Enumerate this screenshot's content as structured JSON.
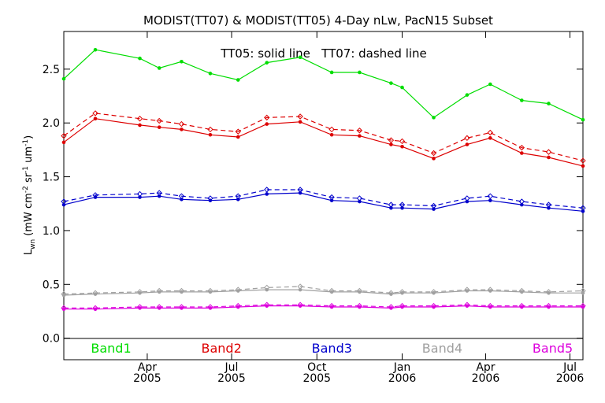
{
  "chart_data": {
    "type": "line",
    "title": "MODIST(TT07) & MODIST(TT05) 4-Day nLw, PacN15 Subset",
    "annotation": "TT05: solid line   TT07: dashed line",
    "ylabel": {
      "main": "L",
      "sub": "wn",
      "units_open": " (mW cm",
      "exp1": "-2",
      "mid": " sr",
      "exp2": "-1",
      "mid2": " um",
      "exp3": "-1",
      "close": ")"
    },
    "ylim": [
      -0.2,
      2.85
    ],
    "yticks": [
      0.0,
      0.5,
      1.0,
      1.5,
      2.0,
      2.5
    ],
    "ytick_labels": [
      "0.0",
      "0.5",
      "1.0",
      "1.5",
      "2.0",
      "2.5"
    ],
    "xlim": [
      "2005-01-01",
      "2006-07-15"
    ],
    "xticks": [
      {
        "date": "2005-04-01",
        "month": "Apr",
        "year": "2005"
      },
      {
        "date": "2005-07-01",
        "month": "Jul",
        "year": "2005"
      },
      {
        "date": "2005-10-01",
        "month": "Oct",
        "year": "2005"
      },
      {
        "date": "2006-01-01",
        "month": "Jan",
        "year": "2006"
      },
      {
        "date": "2006-04-01",
        "month": "Apr",
        "year": "2006"
      },
      {
        "date": "2006-07-01",
        "month": "Jul",
        "year": "2006"
      }
    ],
    "dates": [
      "2005-01-01",
      "2005-02-04",
      "2005-03-24",
      "2005-04-14",
      "2005-05-08",
      "2005-06-08",
      "2005-07-08",
      "2005-08-08",
      "2005-09-13",
      "2005-10-17",
      "2005-11-16",
      "2005-12-20",
      "2006-01-01",
      "2006-02-04",
      "2006-03-12",
      "2006-04-06",
      "2006-05-10",
      "2006-06-08",
      "2006-07-15"
    ],
    "series": [
      {
        "name": "Band1",
        "color": "#00dd00",
        "style": "solid",
        "values": [
          2.41,
          2.68,
          2.6,
          2.51,
          2.57,
          2.46,
          2.4,
          2.56,
          2.61,
          2.47,
          2.47,
          2.37,
          2.33,
          2.05,
          2.26,
          2.36,
          2.21,
          2.18,
          2.03
        ]
      },
      {
        "name": "Band2",
        "color": "#dd0000",
        "style": "solid",
        "values": [
          1.82,
          2.04,
          1.98,
          1.96,
          1.94,
          1.89,
          1.87,
          1.99,
          2.01,
          1.89,
          1.88,
          1.8,
          1.78,
          1.67,
          1.8,
          1.86,
          1.72,
          1.68,
          1.6
        ]
      },
      {
        "name": "Band2",
        "color": "#dd0000",
        "style": "dashed",
        "values": [
          1.88,
          2.09,
          2.04,
          2.02,
          1.99,
          1.94,
          1.92,
          2.05,
          2.06,
          1.94,
          1.93,
          1.84,
          1.83,
          1.72,
          1.86,
          1.91,
          1.77,
          1.73,
          1.65
        ]
      },
      {
        "name": "Band3",
        "color": "#0000cc",
        "style": "solid",
        "values": [
          1.24,
          1.31,
          1.31,
          1.32,
          1.29,
          1.28,
          1.29,
          1.34,
          1.35,
          1.28,
          1.27,
          1.21,
          1.21,
          1.2,
          1.27,
          1.28,
          1.24,
          1.21,
          1.18
        ]
      },
      {
        "name": "Band3",
        "color": "#0000cc",
        "style": "dashed",
        "values": [
          1.27,
          1.33,
          1.34,
          1.35,
          1.32,
          1.3,
          1.32,
          1.38,
          1.38,
          1.31,
          1.3,
          1.24,
          1.24,
          1.23,
          1.3,
          1.32,
          1.27,
          1.24,
          1.21
        ]
      },
      {
        "name": "Band4",
        "color": "#a0a0a0",
        "style": "solid",
        "values": [
          0.4,
          0.41,
          0.42,
          0.43,
          0.43,
          0.43,
          0.44,
          0.45,
          0.45,
          0.43,
          0.43,
          0.41,
          0.42,
          0.42,
          0.44,
          0.44,
          0.43,
          0.42,
          0.42
        ]
      },
      {
        "name": "Band4",
        "color": "#a0a0a0",
        "style": "dashed",
        "values": [
          0.41,
          0.42,
          0.43,
          0.44,
          0.44,
          0.44,
          0.45,
          0.47,
          0.48,
          0.44,
          0.44,
          0.42,
          0.43,
          0.43,
          0.45,
          0.45,
          0.44,
          0.43,
          0.44
        ]
      },
      {
        "name": "Band5",
        "color": "#dd00dd",
        "style": "solid",
        "values": [
          0.27,
          0.27,
          0.28,
          0.28,
          0.28,
          0.28,
          0.29,
          0.3,
          0.3,
          0.29,
          0.29,
          0.28,
          0.29,
          0.29,
          0.3,
          0.29,
          0.29,
          0.29,
          0.29
        ]
      },
      {
        "name": "Band5",
        "color": "#dd00dd",
        "style": "dashed",
        "values": [
          0.28,
          0.28,
          0.29,
          0.29,
          0.29,
          0.29,
          0.3,
          0.31,
          0.31,
          0.3,
          0.3,
          0.29,
          0.3,
          0.3,
          0.31,
          0.3,
          0.3,
          0.3,
          0.3
        ]
      }
    ],
    "legend": [
      {
        "label": "Band1",
        "color": "#00dd00"
      },
      {
        "label": "Band2",
        "color": "#dd0000"
      },
      {
        "label": "Band3",
        "color": "#0000cc"
      },
      {
        "label": "Band4",
        "color": "#a0a0a0"
      },
      {
        "label": "Band5",
        "color": "#dd00dd"
      }
    ],
    "legend_placement": "bottom-inside",
    "grid": false
  }
}
